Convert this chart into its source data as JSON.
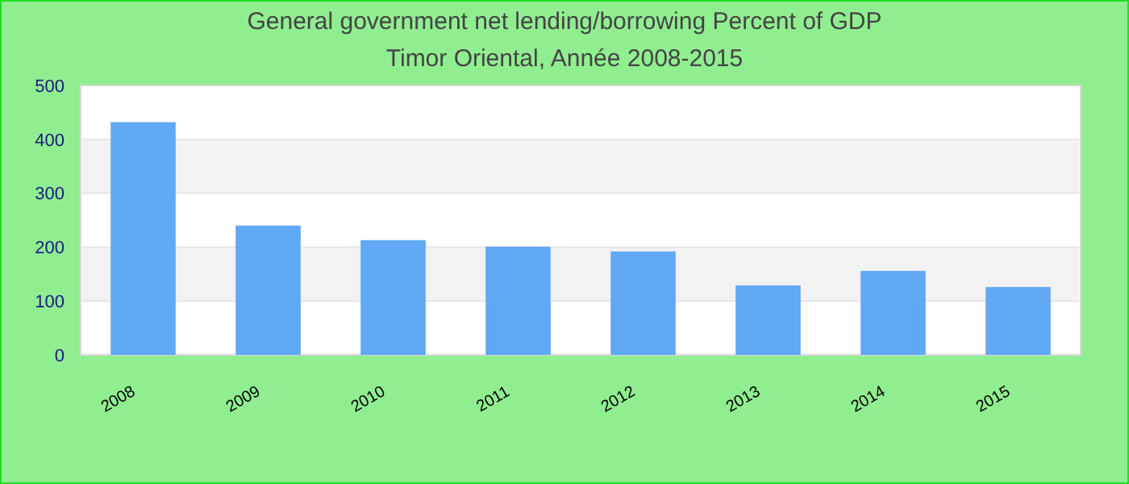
{
  "chart_data": {
    "type": "bar",
    "title": "General government net lending/borrowing  Percent of GDP",
    "subtitle": "Timor Oriental, Année 2008-2015",
    "categories": [
      "2008",
      "2009",
      "2010",
      "2011",
      "2012",
      "2013",
      "2014",
      "2015"
    ],
    "values": [
      432,
      240,
      213,
      201,
      192,
      129,
      156,
      126
    ],
    "color": "#61a8f5",
    "ylim": [
      0,
      500
    ],
    "yticks": [
      0,
      100,
      200,
      300,
      400,
      500
    ],
    "grid": "y"
  }
}
